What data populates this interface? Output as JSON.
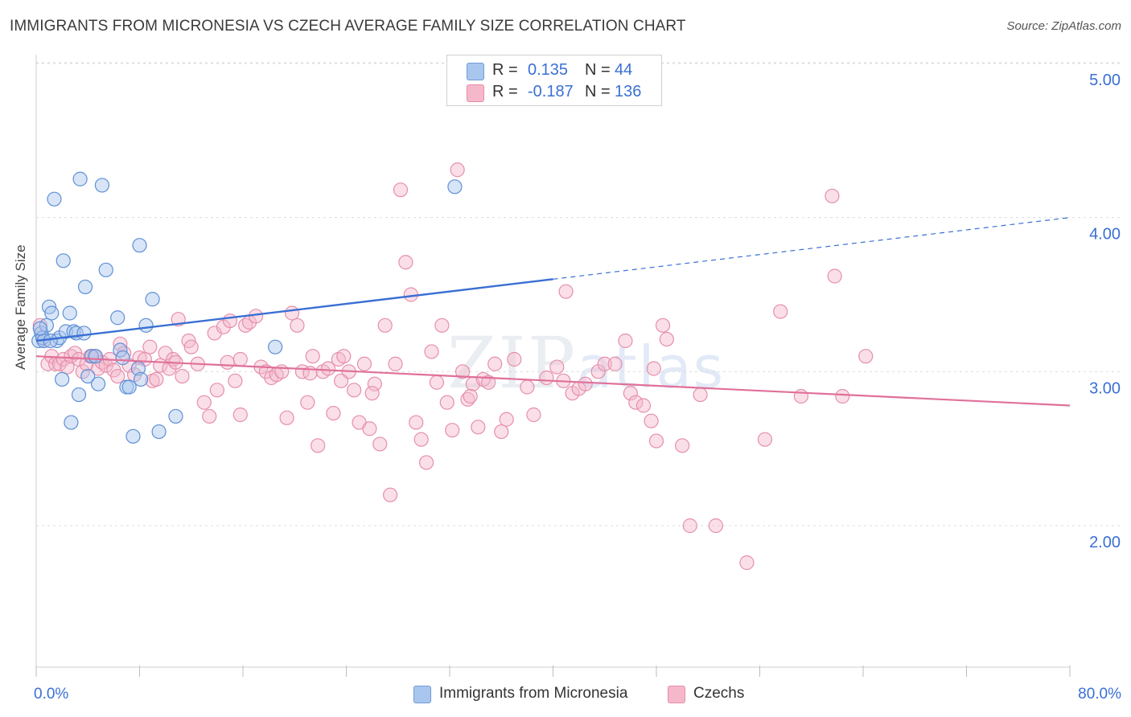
{
  "title": "IMMIGRANTS FROM MICRONESIA VS CZECH AVERAGE FAMILY SIZE CORRELATION CHART",
  "source": "Source: ZipAtlas.com",
  "watermark": {
    "zip": "ZIP",
    "atlas": "atlas"
  },
  "legend": {
    "series1": {
      "r_label": "R =",
      "r_value": "0.135",
      "n_label": "N =",
      "n_value": "44",
      "color": "#a9c6ee"
    },
    "series2": {
      "r_label": "R =",
      "r_value": "-0.187",
      "n_label": "N =",
      "n_value": "136",
      "color": "#f5b8cb"
    }
  },
  "bottom_legend": {
    "series1": "Immigrants from Micronesia",
    "series2": "Czechs"
  },
  "chart_data": {
    "type": "scatter",
    "ylabel": "Average Family Size",
    "x_tick_labels": [
      "0.0%",
      "80.0%"
    ],
    "y_tick_labels": [
      "2.00",
      "3.00",
      "4.00",
      "5.00"
    ],
    "xlim": [
      0,
      80
    ],
    "ylim": [
      1.25,
      5.1
    ],
    "grid": true,
    "colors": {
      "blue": "#3a6fd4",
      "blue_fill": "#a9c6ee",
      "pink": "#e0709a",
      "pink_fill": "#f5b8cb",
      "tick_label": "#3a6fd4"
    },
    "series": [
      {
        "name": "Immigrants from Micronesia",
        "points": [
          [
            0.2,
            3.2
          ],
          [
            0.4,
            3.25
          ],
          [
            0.5,
            3.22
          ],
          [
            0.6,
            3.2
          ],
          [
            0.8,
            3.3
          ],
          [
            1.0,
            3.42
          ],
          [
            1.2,
            3.38
          ],
          [
            1.4,
            4.12
          ],
          [
            1.6,
            3.2
          ],
          [
            1.8,
            3.22
          ],
          [
            2.0,
            2.95
          ],
          [
            2.1,
            3.72
          ],
          [
            2.3,
            3.26
          ],
          [
            2.6,
            3.38
          ],
          [
            2.7,
            2.67
          ],
          [
            2.9,
            3.26
          ],
          [
            3.1,
            3.25
          ],
          [
            3.3,
            2.85
          ],
          [
            3.4,
            4.25
          ],
          [
            3.7,
            3.25
          ],
          [
            3.8,
            3.55
          ],
          [
            4.0,
            2.97
          ],
          [
            4.3,
            3.1
          ],
          [
            4.6,
            3.1
          ],
          [
            4.8,
            2.92
          ],
          [
            5.1,
            4.21
          ],
          [
            5.4,
            3.66
          ],
          [
            6.3,
            3.35
          ],
          [
            6.5,
            3.14
          ],
          [
            6.7,
            3.09
          ],
          [
            7.0,
            2.9
          ],
          [
            7.2,
            2.9
          ],
          [
            7.5,
            2.58
          ],
          [
            7.9,
            3.02
          ],
          [
            8.0,
            3.82
          ],
          [
            8.1,
            2.95
          ],
          [
            8.5,
            3.3
          ],
          [
            9.0,
            3.47
          ],
          [
            9.5,
            2.61
          ],
          [
            10.8,
            2.71
          ],
          [
            18.5,
            3.16
          ],
          [
            32.4,
            4.2
          ],
          [
            0.3,
            3.28
          ],
          [
            1.1,
            3.2
          ]
        ]
      },
      {
        "name": "Czechs",
        "points": [
          [
            0.3,
            3.3
          ],
          [
            0.6,
            3.2
          ],
          [
            0.9,
            3.05
          ],
          [
            1.2,
            3.1
          ],
          [
            1.5,
            3.05
          ],
          [
            1.8,
            3.05
          ],
          [
            2.1,
            3.08
          ],
          [
            2.4,
            3.03
          ],
          [
            2.7,
            3.1
          ],
          [
            3.0,
            3.12
          ],
          [
            3.3,
            3.08
          ],
          [
            3.6,
            3.0
          ],
          [
            3.9,
            3.05
          ],
          [
            4.2,
            3.1
          ],
          [
            4.5,
            3.1
          ],
          [
            4.8,
            3.02
          ],
          [
            5.1,
            3.06
          ],
          [
            5.4,
            3.04
          ],
          [
            5.7,
            3.08
          ],
          [
            6.0,
            3.01
          ],
          [
            6.3,
            2.97
          ],
          [
            6.5,
            3.18
          ],
          [
            6.8,
            3.12
          ],
          [
            7.2,
            3.04
          ],
          [
            7.6,
            2.98
          ],
          [
            8.0,
            3.09
          ],
          [
            8.4,
            3.08
          ],
          [
            8.8,
            3.16
          ],
          [
            9.0,
            2.94
          ],
          [
            9.3,
            2.95
          ],
          [
            9.6,
            3.04
          ],
          [
            10.0,
            3.12
          ],
          [
            10.3,
            3.02
          ],
          [
            10.6,
            3.08
          ],
          [
            11.0,
            3.34
          ],
          [
            11.3,
            2.97
          ],
          [
            11.8,
            3.2
          ],
          [
            12.0,
            3.16
          ],
          [
            12.5,
            3.05
          ],
          [
            13.0,
            2.8
          ],
          [
            13.4,
            2.71
          ],
          [
            13.8,
            3.25
          ],
          [
            14.0,
            2.88
          ],
          [
            14.5,
            3.29
          ],
          [
            15.0,
            3.33
          ],
          [
            15.4,
            2.94
          ],
          [
            15.8,
            3.08
          ],
          [
            16.2,
            3.3
          ],
          [
            16.5,
            3.32
          ],
          [
            17.0,
            3.36
          ],
          [
            17.4,
            3.03
          ],
          [
            17.8,
            3.0
          ],
          [
            18.2,
            2.96
          ],
          [
            18.6,
            2.98
          ],
          [
            19.0,
            3.0
          ],
          [
            19.4,
            2.7
          ],
          [
            19.8,
            3.38
          ],
          [
            20.2,
            3.3
          ],
          [
            20.6,
            3.0
          ],
          [
            21.0,
            2.8
          ],
          [
            21.4,
            3.1
          ],
          [
            21.8,
            2.52
          ],
          [
            22.2,
            3.0
          ],
          [
            22.6,
            3.02
          ],
          [
            23.0,
            2.73
          ],
          [
            23.4,
            3.08
          ],
          [
            23.8,
            3.1
          ],
          [
            24.2,
            3.0
          ],
          [
            24.6,
            2.88
          ],
          [
            25.0,
            2.67
          ],
          [
            25.4,
            3.05
          ],
          [
            25.8,
            2.63
          ],
          [
            26.2,
            2.92
          ],
          [
            26.6,
            2.53
          ],
          [
            27.0,
            3.3
          ],
          [
            27.4,
            2.2
          ],
          [
            27.8,
            3.05
          ],
          [
            28.2,
            4.18
          ],
          [
            28.6,
            3.71
          ],
          [
            29.0,
            3.5
          ],
          [
            29.4,
            2.67
          ],
          [
            29.8,
            2.56
          ],
          [
            30.2,
            2.41
          ],
          [
            30.6,
            3.13
          ],
          [
            31.0,
            2.93
          ],
          [
            31.4,
            3.3
          ],
          [
            31.8,
            2.8
          ],
          [
            32.2,
            2.62
          ],
          [
            32.6,
            4.31
          ],
          [
            33.0,
            3.0
          ],
          [
            33.4,
            2.82
          ],
          [
            33.8,
            2.92
          ],
          [
            34.2,
            2.64
          ],
          [
            34.6,
            2.95
          ],
          [
            35.0,
            2.93
          ],
          [
            35.5,
            3.05
          ],
          [
            36.0,
            2.61
          ],
          [
            36.4,
            2.69
          ],
          [
            37.0,
            3.08
          ],
          [
            38.5,
            2.72
          ],
          [
            39.5,
            2.96
          ],
          [
            40.3,
            3.03
          ],
          [
            41.0,
            3.52
          ],
          [
            41.5,
            2.86
          ],
          [
            42.0,
            2.89
          ],
          [
            42.5,
            2.92
          ],
          [
            43.5,
            3.0
          ],
          [
            44.0,
            3.05
          ],
          [
            45.6,
            3.2
          ],
          [
            46.0,
            2.86
          ],
          [
            46.4,
            2.8
          ],
          [
            47.0,
            2.78
          ],
          [
            47.6,
            2.68
          ],
          [
            48.0,
            2.55
          ],
          [
            48.5,
            3.3
          ],
          [
            48.8,
            3.21
          ],
          [
            50.0,
            2.52
          ],
          [
            50.6,
            2.0
          ],
          [
            51.4,
            2.85
          ],
          [
            52.6,
            2.0
          ],
          [
            55.0,
            1.76
          ],
          [
            56.4,
            2.56
          ],
          [
            57.6,
            3.39
          ],
          [
            59.2,
            2.84
          ],
          [
            61.6,
            4.14
          ],
          [
            61.8,
            3.62
          ],
          [
            62.4,
            2.84
          ],
          [
            64.2,
            3.1
          ],
          [
            33.6,
            2.84
          ],
          [
            44.8,
            3.05
          ],
          [
            38.0,
            2.9
          ],
          [
            26.0,
            2.86
          ],
          [
            14.8,
            3.06
          ],
          [
            10.8,
            3.06
          ],
          [
            21.2,
            2.99
          ],
          [
            40.8,
            2.94
          ],
          [
            15.8,
            2.72
          ],
          [
            23.6,
            2.94
          ],
          [
            47.8,
            3.02
          ]
        ]
      }
    ],
    "trend_lines": [
      {
        "series": "Immigrants from Micronesia",
        "from": [
          0,
          3.2
        ],
        "to": [
          40,
          3.6
        ],
        "dashed_to": [
          80,
          4.0
        ]
      },
      {
        "series": "Czechs",
        "from": [
          0,
          3.1
        ],
        "to": [
          80,
          2.78
        ]
      }
    ]
  }
}
